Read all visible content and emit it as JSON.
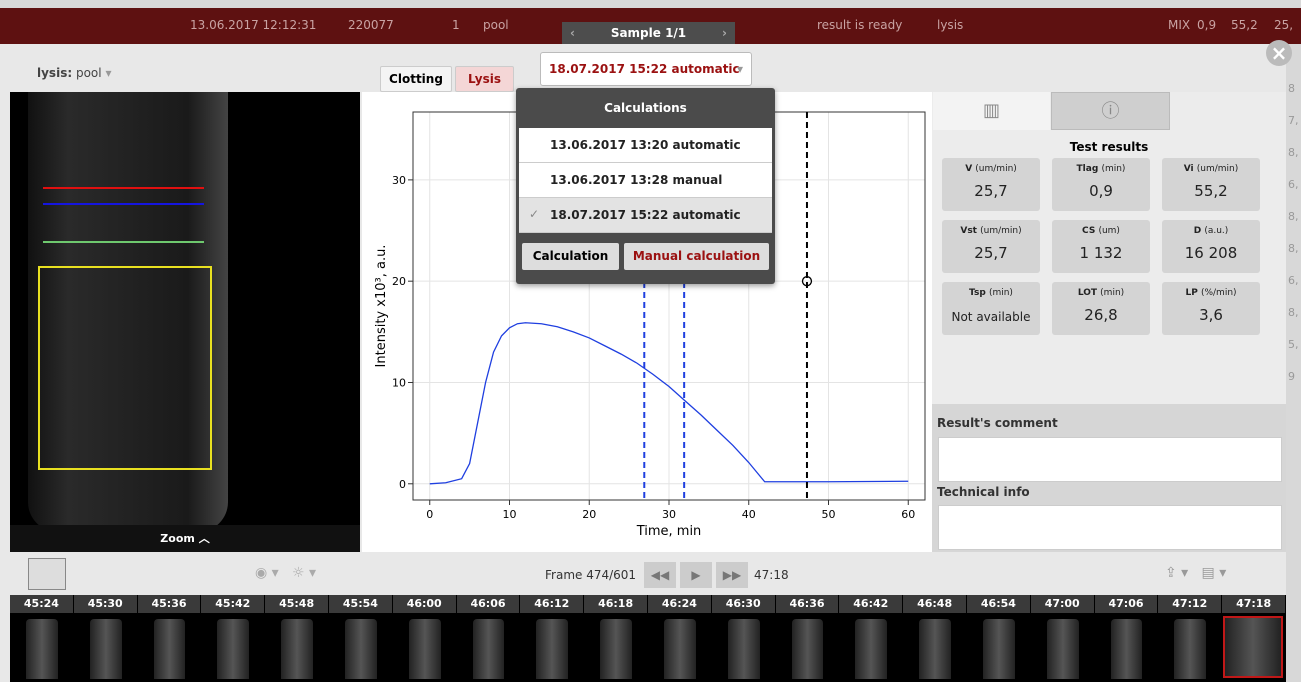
{
  "top_bar": {
    "date": "13.06.2017 12:12:31",
    "id": "220077",
    "number": "1",
    "sample_type": "pool",
    "sample_nav": "Sample 1/1",
    "status": "result is ready",
    "test": "lysis",
    "mix": "MIX",
    "v1": "0,9",
    "v2": "55,2",
    "v3": "25,"
  },
  "toolbar": {
    "test_label": "lysis:",
    "test_value": "pool",
    "tabs": [
      "Clotting",
      "Lysis"
    ],
    "calc_select": "18.07.2017 15:22 automatic"
  },
  "dropdown": {
    "title": "Calculations",
    "items": [
      "13.06.2017 13:20 automatic",
      "13.06.2017 13:28 manual",
      "18.07.2017 15:22 automatic"
    ],
    "buttons": [
      "Calculation",
      "Manual calculation"
    ]
  },
  "image_panel": {
    "zoom": "Zoom"
  },
  "chart": {
    "type": "line",
    "x_label": "Time, min",
    "y_label": "Intensity x10³, a.u.",
    "x": [
      0,
      2,
      4,
      5,
      6,
      7,
      8,
      9,
      10,
      11,
      12,
      14,
      16,
      18,
      20,
      22,
      24,
      26,
      28,
      30,
      32,
      34,
      36,
      38,
      40,
      42,
      44,
      50,
      60
    ],
    "values": [
      0,
      0.1,
      0.5,
      2,
      6,
      10,
      13,
      14.6,
      15.4,
      15.8,
      15.9,
      15.8,
      15.5,
      15,
      14.4,
      13.6,
      12.8,
      11.9,
      10.8,
      9.6,
      8.2,
      6.8,
      5.3,
      3.8,
      2.1,
      0.2,
      0.2,
      0.2,
      0.25
    ],
    "color": "#1f3fe0",
    "xlim": [
      -2.1,
      62.1
    ],
    "ylim": [
      -1.6,
      36.7
    ],
    "xticks": [
      0,
      10,
      20,
      30,
      40,
      50,
      60
    ],
    "yticks": [
      0,
      10,
      20,
      30
    ],
    "grid": true,
    "markers": [
      26.9,
      31.9,
      47.3
    ],
    "marker_colors": [
      "#1f3fe0",
      "#1f3fe0",
      "#000000"
    ],
    "cursor": {
      "x": 47.3,
      "y": 20
    }
  },
  "right_panel": {
    "title": "Test results",
    "metrics": [
      {
        "label": "V",
        "unit": "(um/min)",
        "value": "25,7"
      },
      {
        "label": "Tlag",
        "unit": "(min)",
        "value": "0,9"
      },
      {
        "label": "Vi",
        "unit": "(um/min)",
        "value": "55,2"
      },
      {
        "label": "Vst",
        "unit": "(um/min)",
        "value": "25,7"
      },
      {
        "label": "CS",
        "unit": "(um)",
        "value": "1 132"
      },
      {
        "label": "D",
        "unit": "(a.u.)",
        "value": "16 208"
      },
      {
        "label": "Tsp",
        "unit": "(min)",
        "value": "Not available"
      },
      {
        "label": "LOT",
        "unit": "(min)",
        "value": "26,8"
      },
      {
        "label": "LP",
        "unit": "(%/min)",
        "value": "3,6"
      }
    ],
    "comment_label": "Result's comment",
    "tech_label": "Technical info"
  },
  "bottom_bar": {
    "frame": "Frame 474/601",
    "time": "47:18"
  },
  "film_labels": [
    "45:24",
    "45:30",
    "45:36",
    "45:42",
    "45:48",
    "45:54",
    "46:00",
    "46:06",
    "46:12",
    "46:18",
    "46:24",
    "46:30",
    "46:36",
    "46:42",
    "46:48",
    "46:54",
    "47:00",
    "47:06",
    "47:12",
    "47:18"
  ],
  "side_values": [
    "8",
    "7,",
    "8,",
    "6,",
    "8,",
    "8,",
    "6,",
    "8,",
    "5,",
    "9"
  ]
}
